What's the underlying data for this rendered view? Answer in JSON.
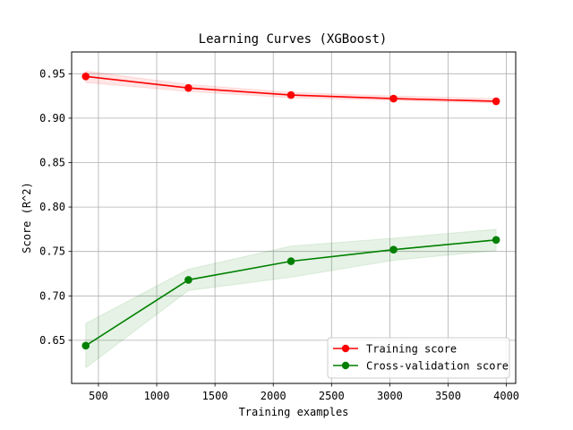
{
  "chart_data": {
    "type": "line",
    "title": "Learning Curves (XGBoost)",
    "xlabel": "Training examples",
    "ylabel": "Score (R^2)",
    "xlim": [
      270,
      4080
    ],
    "ylim": [
      0.6015,
      0.9745
    ],
    "xticks": [
      500,
      1000,
      1500,
      2000,
      2500,
      3000,
      3500,
      4000
    ],
    "yticks": [
      0.65,
      0.7,
      0.75,
      0.8,
      0.85,
      0.9,
      0.95
    ],
    "xtick_labels": [
      "500",
      "1000",
      "1500",
      "2000",
      "2500",
      "3000",
      "3500",
      "4000"
    ],
    "ytick_labels": [
      "0.65",
      "0.70",
      "0.75",
      "0.80",
      "0.85",
      "0.90",
      "0.95"
    ],
    "grid": true,
    "legend_position": "lower-right",
    "x": [
      391,
      1272,
      2152,
      3032,
      3912
    ],
    "series": [
      {
        "name": "Training score",
        "color": "#ff0000",
        "values": [
          0.947,
          0.934,
          0.926,
          0.922,
          0.919
        ],
        "band_lower": [
          0.94,
          0.93,
          0.923,
          0.92,
          0.917
        ],
        "band_upper": [
          0.953,
          0.938,
          0.929,
          0.925,
          0.922
        ]
      },
      {
        "name": "Cross-validation score",
        "color": "#008000",
        "values": [
          0.644,
          0.718,
          0.739,
          0.752,
          0.763
        ],
        "band_lower": [
          0.619,
          0.706,
          0.721,
          0.74,
          0.751
        ],
        "band_upper": [
          0.669,
          0.73,
          0.756,
          0.765,
          0.775
        ]
      }
    ]
  }
}
